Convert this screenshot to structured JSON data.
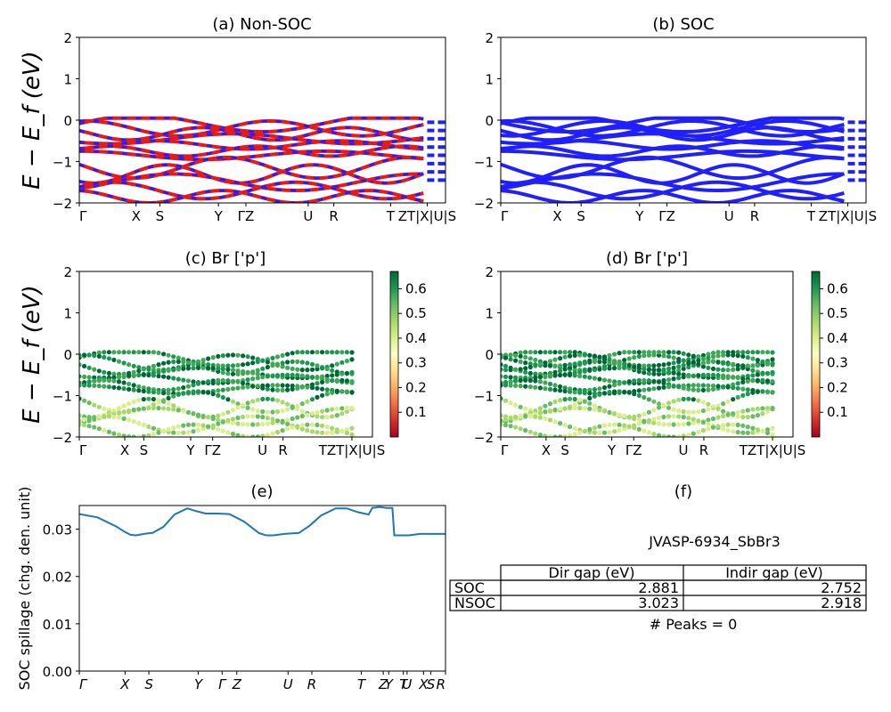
{
  "chart_data": [
    {
      "id": "a",
      "type": "line",
      "title": "(a) Non-SOC",
      "ylabel": "E − E_f (eV)",
      "ylim": [
        -2,
        2
      ],
      "yticks": [
        "2",
        "1",
        "0",
        "−1",
        "−2"
      ],
      "kpoints": [
        "Γ",
        "X",
        "S",
        "Y",
        "ΓZ",
        "U",
        "R",
        "T",
        "ZT|X|U|S"
      ],
      "series": [
        {
          "color": "#e41a1c",
          "style": "solid"
        },
        {
          "color": "#1f1fff",
          "style": "dashed"
        }
      ]
    },
    {
      "id": "b",
      "type": "line",
      "title": "(b) SOC",
      "ylim": [
        -2,
        2
      ],
      "yticks": [
        "2",
        "1",
        "0",
        "−1",
        "−2"
      ],
      "kpoints": [
        "Γ",
        "X",
        "S",
        "Y",
        "ΓZ",
        "U",
        "R",
        "T",
        "ZT|X|U|S"
      ],
      "series": [
        {
          "color": "#1f1fff",
          "style": "solid"
        }
      ]
    },
    {
      "id": "c",
      "type": "scatter",
      "title": "(c)  Br ['p']",
      "ylabel": "E − E_f (eV)",
      "ylim": [
        -2,
        2
      ],
      "yticks": [
        "2",
        "1",
        "0",
        "−1",
        "−2"
      ],
      "kpoints": [
        "Γ",
        "X",
        "S",
        "Y",
        "ΓZ",
        "U",
        "R",
        "TZT|X|U|S"
      ],
      "colorbar": {
        "ticks": [
          "0.6",
          "0.5",
          "0.4",
          "0.3",
          "0.2",
          "0.1"
        ],
        "range": [
          0.0,
          0.67
        ],
        "colormap": "RdYlGn"
      }
    },
    {
      "id": "d",
      "type": "scatter",
      "title": "(d) Br ['p']",
      "ylim": [
        -2,
        2
      ],
      "yticks": [
        "2",
        "1",
        "0",
        "−1",
        "−2"
      ],
      "kpoints": [
        "Γ",
        "X",
        "S",
        "Y",
        "ΓZ",
        "U",
        "R",
        "TZT|X|U|S"
      ],
      "colorbar": {
        "ticks": [
          "0.6",
          "0.5",
          "0.4",
          "0.3",
          "0.2",
          "0.1"
        ],
        "range": [
          0.0,
          0.67
        ],
        "colormap": "RdYlGn"
      }
    },
    {
      "id": "e",
      "type": "line",
      "title": "(e)",
      "ylabel": "SOC spillage (chg. den. unit)",
      "ylim": [
        0,
        0.035
      ],
      "yticks": [
        "0.03",
        "0.02",
        "0.01",
        "0.00"
      ],
      "xticks": [
        "Γ",
        "X",
        "S",
        "Y",
        "Γ",
        "Z",
        "U",
        "R",
        "T",
        "Z",
        "Y",
        "T",
        "U",
        "X",
        "S",
        "R"
      ],
      "x": [
        0,
        0.05,
        0.1,
        0.125,
        0.14,
        0.155,
        0.17,
        0.185,
        0.2,
        0.23,
        0.26,
        0.295,
        0.32,
        0.345,
        0.375,
        0.41,
        0.45,
        0.49,
        0.51,
        0.53,
        0.56,
        0.6,
        0.63,
        0.66,
        0.7,
        0.73,
        0.76,
        0.79,
        0.8,
        0.82,
        0.84,
        0.855,
        0.86,
        0.87,
        0.88,
        0.9,
        0.93,
        0.96,
        1.0
      ],
      "values": [
        0.0332,
        0.0325,
        0.0306,
        0.0294,
        0.0288,
        0.0287,
        0.0289,
        0.0291,
        0.0292,
        0.0305,
        0.0331,
        0.0344,
        0.0338,
        0.0333,
        0.0333,
        0.0332,
        0.0316,
        0.0292,
        0.0287,
        0.0287,
        0.029,
        0.0292,
        0.0308,
        0.0329,
        0.0344,
        0.0344,
        0.0336,
        0.0331,
        0.0345,
        0.0347,
        0.0345,
        0.0345,
        0.0287,
        0.0287,
        0.0287,
        0.0287,
        0.029,
        0.029,
        0.029
      ],
      "color": "#1f77b4"
    },
    {
      "id": "f",
      "type": "table",
      "title": "(f)",
      "subtitle": "JVASP-6934_SbBr3",
      "columns": [
        "Dir gap (eV)",
        "Indir gap (eV)"
      ],
      "rows": [
        {
          "label": "SOC",
          "values": [
            "2.881",
            "2.752"
          ]
        },
        {
          "label": "NSOC",
          "values": [
            "3.023",
            "2.918"
          ]
        }
      ],
      "note": "# Peaks = 0"
    }
  ]
}
